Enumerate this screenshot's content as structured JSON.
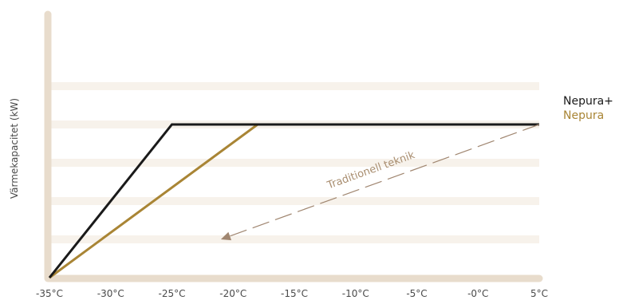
{
  "chart_data": {
    "type": "line",
    "title": "",
    "xlabel": "",
    "ylabel": "Värmekapacitet (kW)",
    "x_tick_labels": [
      "-35°C",
      "-30°C",
      "-25°C",
      "-20°C",
      "-15°C",
      "-10°C",
      "-5°C",
      "-0°C",
      "5°C"
    ],
    "x_tick_values": [
      -35,
      -30,
      -25,
      -20,
      -15,
      -10,
      -5,
      0,
      5
    ],
    "xlim": [
      -35,
      5
    ],
    "ylim": [
      0,
      5
    ],
    "grid": true,
    "legend_position": "right",
    "series": [
      {
        "name": "Nepura+",
        "color": "#1a1a1a",
        "x": [
          -35,
          -25,
          5
        ],
        "y": [
          0,
          4,
          4
        ]
      },
      {
        "name": "Nepura",
        "color": "#a98535",
        "x": [
          -35,
          -18,
          5
        ],
        "y": [
          0,
          4,
          4
        ]
      }
    ],
    "annotations": [
      {
        "text": "Traditionell teknik",
        "arrow_from": {
          "x": 5,
          "y": 4
        },
        "arrow_to": {
          "x": -21,
          "y": 1
        },
        "color": "#a98e70"
      }
    ],
    "colors": {
      "axis": "#e8dccc",
      "grid": "#f7f2eb",
      "arrow": "#a08670"
    }
  }
}
